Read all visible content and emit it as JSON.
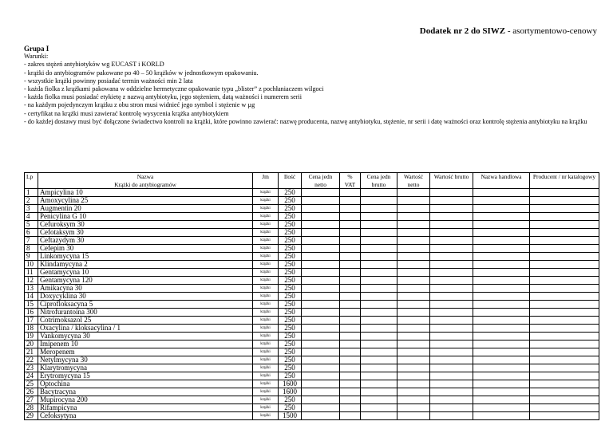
{
  "header": {
    "title_bold": "Dodatek nr 2 do SIWZ",
    "title_rest": " - asortymentowo-cenowy"
  },
  "group": "Grupa I",
  "conditions_label": "Warunki:",
  "conditions": [
    "- zakres stężeń antybiotyków wg EUCAST i KORLD",
    "- krążki do antybiogramów pakowane po 40 – 50 krążków w jednostkowym opakowaniu.",
    "- wszystkie krążki powinny posiadać termin ważności min 2 lata",
    "- każda fiolka z krążkami pakowana w oddzielne hermetyczne opakowanie typu „blister” z pochłaniaczem wilgoci",
    "- każda fiolka musi posiadać etykietę z nazwą antybiotyku, jego stężeniem, datą ważności i numerem serii",
    "- na każdym pojedynczym krążku z obu stron musi widnieć jego symbol i stężenie w µg",
    "- certyfikat na krążki musi zawierać kontrolę wysycenia krążka antybiotykiem",
    "- do każdej dostawy musi być dołączone świadectwo kontroli na krążki, które powinno zawierać: nazwę producenta, nazwę antybiotyku, stężenie, nr serii i datę ważności oraz kontrolę stężenia antybiotyku na krążku"
  ],
  "table": {
    "columns": [
      "Lp",
      "Nazwa\nKrążki do antybiogramów",
      "Jm",
      "Ilość",
      "Cena jedn netto",
      "% VAT",
      "Cena jedn brutto",
      "Wartość netto",
      "Wartość brutto",
      "Nazwa handlowa",
      "Producent / nr katalogowy"
    ],
    "unit": "krążki",
    "rows": [
      [
        "1",
        "Ampicylina 10",
        "250"
      ],
      [
        "2",
        "Amoxycylina 25",
        "250"
      ],
      [
        "3",
        "Augmentin 20",
        "250"
      ],
      [
        "4",
        "Penicylina G 10",
        "250"
      ],
      [
        "5",
        "Cefuroksym 30",
        "250"
      ],
      [
        "6",
        "Cefotaksym 30",
        "250"
      ],
      [
        "7",
        "Ceftazydym 30",
        "250"
      ],
      [
        "8",
        "Cefepim 30",
        "250"
      ],
      [
        "9",
        "Linkomycyna 15",
        "250"
      ],
      [
        "10",
        "Klindamycyna 2",
        "250"
      ],
      [
        "11",
        "Gentamycyna  10",
        "250"
      ],
      [
        "12",
        "Gentamycyna  120",
        "250"
      ],
      [
        "13",
        "Amikacyna 30",
        "250"
      ],
      [
        "14",
        "Doxycyklina 30",
        "250"
      ],
      [
        "15",
        "Ciprofloksacyna 5",
        "250"
      ],
      [
        "16",
        "Nitrofurantoina 300",
        "250"
      ],
      [
        "17",
        "Cotrimoksazol 25",
        "250"
      ],
      [
        "18",
        "Oxacylina / kloksacylina / 1",
        "250"
      ],
      [
        "19",
        "Vankomycyna 30",
        "250"
      ],
      [
        "20",
        "Imipenem 10",
        "250"
      ],
      [
        "21",
        "Meropenem",
        "250"
      ],
      [
        "22",
        "Netylmycyna 30",
        "250"
      ],
      [
        "23",
        "Klarytromycyna",
        "250"
      ],
      [
        "24",
        "Erytromycyna 15",
        "250"
      ],
      [
        "25",
        "Optochina",
        "1600"
      ],
      [
        "26",
        "Bacytracyna",
        "1600"
      ],
      [
        "27",
        "Mupirocyna 200",
        "250"
      ],
      [
        "28",
        "Rifampicyna",
        "250"
      ],
      [
        "29",
        "Cefoksytyna",
        "1500"
      ]
    ]
  }
}
